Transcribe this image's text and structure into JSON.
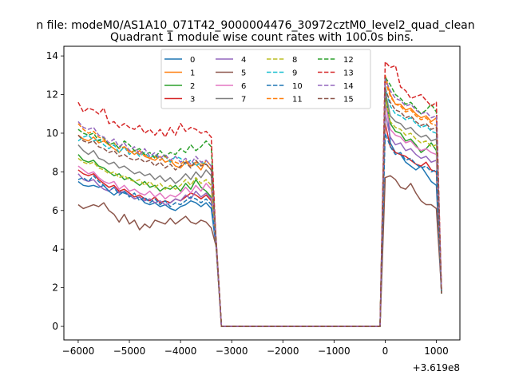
{
  "figure": {
    "suptitle": "n file: modeM0/AS1A10_071T42_9000004476_30972cztM0_level2_quad_clean"
  },
  "chart_data": {
    "type": "line",
    "title": "Quadrant 1 module wise count rates with 100.0s bins.",
    "xlabel": "",
    "ylabel": "",
    "x_offset_label": "+3.619e8",
    "xlim": [
      -6280,
      1460
    ],
    "ylim": [
      -0.7,
      14.5
    ],
    "xticks": [
      -6000,
      -5000,
      -4000,
      -3000,
      -2000,
      -1000,
      0,
      1000
    ],
    "xtick_labels": [
      "−6000",
      "−5000",
      "−4000",
      "−3000",
      "−2000",
      "−1000",
      "0",
      "1000"
    ],
    "yticks": [
      0,
      2,
      4,
      6,
      8,
      10,
      12,
      14
    ],
    "ytick_labels": [
      "0",
      "2",
      "4",
      "6",
      "8",
      "10",
      "12",
      "14"
    ],
    "x": [
      -6000,
      -5900,
      -5800,
      -5700,
      -5600,
      -5500,
      -5400,
      -5300,
      -5200,
      -5100,
      -5000,
      -4900,
      -4800,
      -4700,
      -4600,
      -4500,
      -4400,
      -4300,
      -4200,
      -4100,
      -4000,
      -3900,
      -3800,
      -3700,
      -3600,
      -3500,
      -3400,
      -3300,
      -3200,
      -3100,
      -3000,
      -2900,
      -2800,
      -2700,
      -2600,
      -2500,
      -2400,
      -2300,
      -2200,
      -2100,
      -2000,
      -1900,
      -1800,
      -1700,
      -1600,
      -1500,
      -1400,
      -1300,
      -1200,
      -1100,
      -1000,
      -900,
      -800,
      -700,
      -600,
      -500,
      -400,
      -300,
      -200,
      -100,
      0,
      100,
      200,
      300,
      400,
      500,
      600,
      700,
      800,
      900,
      1000,
      1100
    ],
    "legend": {
      "location": "upper center",
      "columns": 4
    },
    "series": [
      {
        "name": "0",
        "color": "#1f77b4",
        "dash": "solid",
        "pre": [
          7.5,
          7.3,
          7.25,
          7.3,
          7.2,
          7.3,
          7.0,
          6.8,
          7.0,
          6.9,
          6.8,
          6.6,
          6.7,
          6.4,
          6.3,
          6.4,
          6.2,
          6.3,
          6.1,
          6.0,
          6.2,
          6.3,
          6.5,
          6.4,
          6.2,
          6.4
        ],
        "peak": 12.5,
        "post": [
          9.5,
          9.0,
          8.9,
          8.5,
          8.3,
          8.1,
          8.3,
          7.9,
          7.5,
          7.3,
          7.2,
          7.1
        ]
      },
      {
        "name": "1",
        "color": "#ff7f0e",
        "dash": "solid",
        "pre": [
          9.9,
          9.7,
          9.6,
          9.8,
          9.5,
          9.6,
          9.4,
          9.2,
          9.0,
          9.3,
          9.1,
          8.9,
          9.1,
          8.8,
          8.7,
          8.6,
          8.8,
          8.5,
          8.6,
          8.3,
          8.2,
          8.5,
          8.3,
          8.4,
          8.1,
          8.6
        ],
        "peak": 13.0,
        "post": [
          12.0,
          11.5,
          11.5,
          11.2,
          11.3,
          11.0,
          10.8,
          10.9,
          10.6,
          10.8,
          10.5,
          10.4
        ]
      },
      {
        "name": "2",
        "color": "#2ca02c",
        "dash": "solid",
        "pre": [
          8.9,
          8.6,
          8.5,
          8.6,
          8.3,
          8.2,
          8.0,
          7.8,
          7.9,
          7.6,
          7.7,
          7.5,
          7.3,
          7.5,
          7.2,
          7.3,
          7.0,
          7.2,
          7.1,
          7.3,
          7.0,
          7.4,
          7.1,
          7.6,
          7.2,
          7.0
        ],
        "peak": 12.0,
        "post": [
          10.5,
          10.1,
          10.0,
          9.6,
          9.7,
          9.4,
          9.0,
          9.2,
          9.5,
          9.1,
          8.9,
          8.8
        ]
      },
      {
        "name": "3",
        "color": "#d62728",
        "dash": "solid",
        "pre": [
          8.1,
          7.9,
          7.8,
          7.9,
          7.6,
          7.4,
          7.2,
          7.3,
          7.0,
          7.1,
          6.9,
          6.7,
          6.8,
          6.6,
          6.5,
          6.7,
          6.4,
          6.5,
          6.4,
          6.6,
          6.5,
          6.7,
          6.9,
          6.8,
          6.6,
          6.8
        ],
        "peak": 10.5,
        "post": [
          9.3,
          9.0,
          8.9,
          8.8,
          8.6,
          8.4,
          8.3,
          8.5,
          8.1,
          8.0,
          7.9,
          7.8
        ]
      },
      {
        "name": "4",
        "color": "#9467bd",
        "dash": "solid",
        "pre": [
          7.9,
          7.6,
          7.5,
          7.6,
          7.3,
          7.1,
          7.0,
          7.2,
          6.9,
          7.0,
          6.8,
          6.6,
          6.7,
          6.5,
          6.6,
          6.4,
          6.5,
          6.3,
          6.4,
          6.6,
          6.5,
          6.8,
          6.6,
          7.0,
          6.7,
          6.9
        ],
        "peak": 11.0,
        "post": [
          9.8,
          9.4,
          9.5,
          9.1,
          9.2,
          8.9,
          8.7,
          8.8,
          8.5,
          8.6,
          8.4,
          8.3
        ]
      },
      {
        "name": "5",
        "color": "#8c564b",
        "dash": "solid",
        "pre": [
          6.3,
          6.1,
          6.2,
          6.3,
          6.2,
          6.4,
          6.0,
          5.8,
          5.4,
          5.8,
          5.3,
          5.5,
          5.0,
          5.3,
          5.1,
          5.5,
          5.4,
          5.3,
          5.6,
          5.3,
          5.5,
          5.7,
          5.4,
          5.3,
          5.5,
          5.4
        ],
        "peak": 7.7,
        "post": [
          7.8,
          7.6,
          7.2,
          7.1,
          7.4,
          6.9,
          6.5,
          6.3,
          6.3,
          6.1,
          6.1,
          6.2
        ]
      },
      {
        "name": "6",
        "color": "#e377c2",
        "dash": "solid",
        "pre": [
          8.3,
          8.1,
          7.9,
          8.0,
          7.7,
          7.5,
          7.4,
          7.5,
          7.1,
          7.3,
          7.0,
          7.1,
          6.9,
          6.8,
          7.0,
          6.7,
          6.9,
          6.6,
          6.8,
          6.7,
          6.9,
          7.2,
          6.9,
          7.3,
          7.0,
          7.4
        ],
        "peak": 11.5,
        "post": [
          10.2,
          9.9,
          9.8,
          9.5,
          9.6,
          9.3,
          9.1,
          9.2,
          9.0,
          8.9,
          8.8,
          8.7
        ]
      },
      {
        "name": "7",
        "color": "#7f7f7f",
        "dash": "solid",
        "pre": [
          9.4,
          9.1,
          8.9,
          9.1,
          8.7,
          8.6,
          8.4,
          8.5,
          8.2,
          8.3,
          8.1,
          7.9,
          8.0,
          7.8,
          7.9,
          7.6,
          7.8,
          7.5,
          7.7,
          7.4,
          7.6,
          7.9,
          7.6,
          8.0,
          7.7,
          8.1
        ],
        "peak": 12.2,
        "post": [
          10.9,
          10.6,
          10.5,
          10.2,
          10.3,
          10.0,
          9.8,
          9.9,
          9.6,
          9.7,
          9.4,
          9.3
        ]
      },
      {
        "name": "8",
        "color": "#bcbd22",
        "dash": "dashed",
        "pre": [
          8.7,
          8.5,
          8.4,
          8.5,
          8.2,
          8.1,
          7.9,
          8.0,
          7.7,
          7.8,
          7.6,
          7.5,
          7.6,
          7.3,
          7.5,
          7.2,
          7.4,
          7.1,
          7.3,
          7.1,
          7.3,
          7.6,
          7.3,
          7.7,
          7.4,
          7.6
        ],
        "peak": 11.8,
        "post": [
          10.6,
          10.3,
          10.2,
          9.9,
          10.0,
          9.7,
          9.5,
          9.6,
          9.3,
          9.4,
          9.2,
          9.1
        ]
      },
      {
        "name": "9",
        "color": "#17becf",
        "dash": "dashed",
        "pre": [
          9.6,
          9.8,
          9.9,
          9.6,
          9.7,
          9.4,
          9.2,
          9.4,
          9.0,
          9.3,
          8.9,
          9.1,
          8.8,
          9.0,
          8.7,
          8.9,
          8.6,
          8.8,
          8.5,
          8.8,
          8.7,
          8.4,
          8.6,
          8.3,
          8.5,
          8.4
        ],
        "peak": 12.4,
        "post": [
          11.4,
          11.0,
          10.9,
          10.7,
          10.8,
          10.5,
          10.3,
          10.4,
          10.1,
          10.0,
          9.8,
          9.7
        ]
      },
      {
        "name": "10",
        "color": "#1f77b4",
        "dash": "dashed",
        "pre": [
          7.6,
          7.7,
          7.5,
          7.8,
          7.5,
          7.3,
          7.0,
          7.2,
          6.8,
          7.0,
          6.7,
          6.9,
          6.5,
          6.7,
          6.4,
          6.6,
          6.3,
          6.5,
          6.2,
          6.4,
          6.3,
          6.5,
          6.7,
          6.6,
          6.4,
          6.6
        ],
        "peak": 10.0,
        "post": [
          9.3,
          8.9,
          9.0,
          8.6,
          8.7,
          8.4,
          8.2,
          8.3,
          8.0,
          8.1,
          7.9,
          7.8
        ]
      },
      {
        "name": "11",
        "color": "#ff7f0e",
        "dash": "dashed",
        "pre": [
          10.5,
          10.2,
          10.0,
          10.1,
          9.8,
          9.7,
          9.4,
          9.5,
          9.2,
          9.3,
          9.0,
          9.1,
          8.9,
          8.9,
          8.7,
          8.8,
          8.6,
          8.8,
          8.6,
          8.5,
          8.4,
          8.6,
          8.3,
          8.5,
          8.4,
          8.4
        ],
        "peak": 12.7,
        "post": [
          11.9,
          11.5,
          11.4,
          11.1,
          11.2,
          10.9,
          10.7,
          10.8,
          10.5,
          10.4,
          10.3,
          10.2
        ]
      },
      {
        "name": "12",
        "color": "#2ca02c",
        "dash": "dashed",
        "pre": [
          10.2,
          10.0,
          9.9,
          10.0,
          9.6,
          9.8,
          9.4,
          9.5,
          9.2,
          9.6,
          9.4,
          9.1,
          9.2,
          8.9,
          9.0,
          8.7,
          9.1,
          8.8,
          9.0,
          8.9,
          9.2,
          9.0,
          9.4,
          9.1,
          9.3,
          9.6
        ],
        "peak": 12.9,
        "post": [
          12.5,
          12.0,
          11.8,
          11.5,
          11.6,
          11.3,
          11.0,
          11.2,
          11.5,
          11.1,
          10.9,
          10.8
        ]
      },
      {
        "name": "13",
        "color": "#d62728",
        "dash": "dashed",
        "pre": [
          11.6,
          11.1,
          11.3,
          11.2,
          11.0,
          11.3,
          10.5,
          10.6,
          10.3,
          10.5,
          10.3,
          10.2,
          10.4,
          10.0,
          10.2,
          9.9,
          10.2,
          9.8,
          10.3,
          9.9,
          10.5,
          10.1,
          10.3,
          10.2,
          10.0,
          10.1
        ],
        "peak": 13.7,
        "post": [
          13.4,
          13.5,
          12.4,
          12.2,
          11.8,
          11.9,
          12.0,
          11.7,
          11.4,
          11.6,
          11.2,
          11.1
        ]
      },
      {
        "name": "14",
        "color": "#9467bd",
        "dash": "dashed",
        "pre": [
          10.6,
          10.3,
          10.2,
          10.3,
          9.9,
          9.8,
          9.5,
          9.7,
          9.3,
          9.5,
          9.1,
          9.3,
          8.9,
          9.2,
          8.8,
          9.0,
          8.7,
          8.9,
          8.6,
          8.8,
          8.5,
          8.7,
          8.4,
          8.8,
          8.5,
          8.6
        ],
        "peak": 12.8,
        "post": [
          12.2,
          11.8,
          11.7,
          11.4,
          11.5,
          11.2,
          11.0,
          11.1,
          10.8,
          10.9,
          10.7,
          10.6
        ]
      },
      {
        "name": "15",
        "color": "#8c564b",
        "dash": "dashed",
        "pre": [
          9.9,
          9.6,
          9.5,
          9.6,
          9.3,
          9.2,
          9.0,
          9.1,
          8.8,
          8.9,
          8.7,
          8.6,
          8.7,
          8.5,
          8.6,
          8.3,
          8.5,
          8.2,
          8.4,
          8.1,
          8.3,
          8.5,
          8.2,
          8.6,
          8.3,
          8.4
        ],
        "peak": 12.3,
        "post": [
          11.6,
          11.2,
          11.1,
          10.8,
          10.9,
          10.6,
          10.4,
          10.5,
          10.2,
          10.3,
          10.1,
          10.0
        ]
      }
    ],
    "transition": {
      "drop_value": 4.0,
      "end_value": 1.7,
      "zero_level": 0
    }
  }
}
